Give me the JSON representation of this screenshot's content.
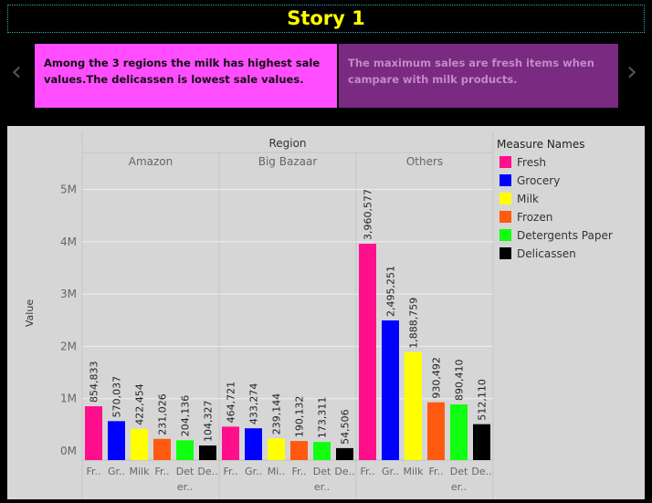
{
  "story": {
    "title": "Story 1",
    "prev_icon": "chevron-left-icon",
    "next_icon": "chevron-right-icon",
    "prev_glyph": "‹",
    "next_glyph": "›",
    "points": [
      {
        "text": "Among the 3 regions the milk has highest sale values.The delicassen is lowest sale values.",
        "color": "#ff4dff"
      },
      {
        "text": "The maximum sales  are fresh items when campare with milk products.",
        "color": "#7a2a80"
      }
    ]
  },
  "chart_data": {
    "type": "bar",
    "column_header": "Region",
    "regions": [
      "Amazon",
      "Big Bazaar",
      "Others"
    ],
    "ylabel": "Value",
    "ylim": [
      0,
      5200000
    ],
    "yticks": [
      {
        "value": 0,
        "label": "0M"
      },
      {
        "value": 1000000,
        "label": "1M"
      },
      {
        "value": 2000000,
        "label": "2M"
      },
      {
        "value": 3000000,
        "label": "3M"
      },
      {
        "value": 4000000,
        "label": "4M"
      },
      {
        "value": 5000000,
        "label": "5M"
      }
    ],
    "category_labels": [
      [
        "Fr..",
        "Gr..",
        "Milk",
        "Fr..",
        "Det",
        "De.."
      ],
      [
        "Fr..",
        "Gr..",
        "Mi..",
        "Fr..",
        "Det",
        "De.."
      ],
      [
        "Fr..",
        "Gr..",
        "Milk",
        "Fr..",
        "Det",
        "De.."
      ]
    ],
    "category_labels_line2": [
      "",
      "",
      "",
      "",
      "er..",
      ""
    ],
    "legend_title": "Measure Names",
    "legend_position": "right",
    "grid": true,
    "series": [
      {
        "name": "Fresh",
        "color": "#ff0f8c",
        "values": [
          854833,
          464721,
          3960577
        ],
        "labels": [
          "854,833",
          "464,721",
          "3,960,577"
        ]
      },
      {
        "name": "Grocery",
        "color": "#0000ff",
        "values": [
          570037,
          433274,
          2495251
        ],
        "labels": [
          "570,037",
          "433,274",
          "2,495,251"
        ]
      },
      {
        "name": "Milk",
        "color": "#ffff00",
        "values": [
          422454,
          239144,
          1888759
        ],
        "labels": [
          "422,454",
          "239,144",
          "1,888,759"
        ]
      },
      {
        "name": "Frozen",
        "color": "#ff5a10",
        "values": [
          231026,
          190132,
          930492
        ],
        "labels": [
          "231,026",
          "190,132",
          "930,492"
        ]
      },
      {
        "name": "Detergents Paper",
        "color": "#11ff11",
        "values": [
          204136,
          173311,
          890410
        ],
        "labels": [
          "204,136",
          "173,311",
          "890,410"
        ]
      },
      {
        "name": "Delicassen",
        "color": "#000000",
        "values": [
          104327,
          54506,
          512110
        ],
        "labels": [
          "104,327",
          "54,506",
          "512,110"
        ]
      }
    ]
  }
}
